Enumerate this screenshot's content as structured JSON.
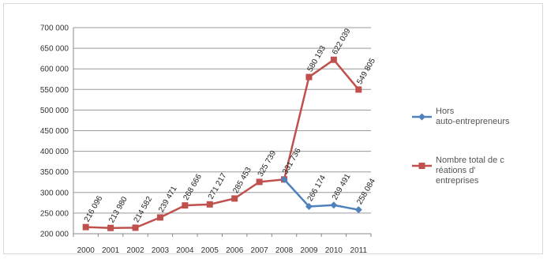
{
  "chart_data": {
    "type": "line",
    "categories": [
      "2000",
      "2001",
      "2002",
      "2003",
      "2004",
      "2005",
      "2006",
      "2007",
      "2008",
      "2009",
      "2010",
      "2011"
    ],
    "ylim": [
      200000,
      700000
    ],
    "yticks": [
      "200 000",
      "250 000",
      "300 000",
      "350 000",
      "400 000",
      "450 000",
      "500 000",
      "550 000",
      "600 000",
      "650 000",
      "700 000"
    ],
    "grid": true,
    "legend_position": "right",
    "series": [
      {
        "name": "Hors auto-entrepreneurs",
        "color": "#4f81bd",
        "values": [
          null,
          null,
          null,
          null,
          null,
          null,
          null,
          null,
          331736,
          266174,
          269491,
          258084
        ],
        "labels": [
          "",
          "",
          "",
          "",
          "",
          "",
          "",
          "",
          "",
          "266 174",
          "269 491",
          "258 084"
        ]
      },
      {
        "name": "Nombre total de créations d'entreprises",
        "color": "#c0504d",
        "values": [
          216096,
          213980,
          214582,
          239471,
          268666,
          271217,
          285453,
          325739,
          331736,
          580193,
          622039,
          549805
        ],
        "labels": [
          "216 096",
          "213 980",
          "214 582",
          "239 471",
          "268 666",
          "271 217",
          "285 453",
          "325 739",
          "331 736",
          "580 193",
          "622 039",
          "549 805"
        ]
      }
    ]
  }
}
